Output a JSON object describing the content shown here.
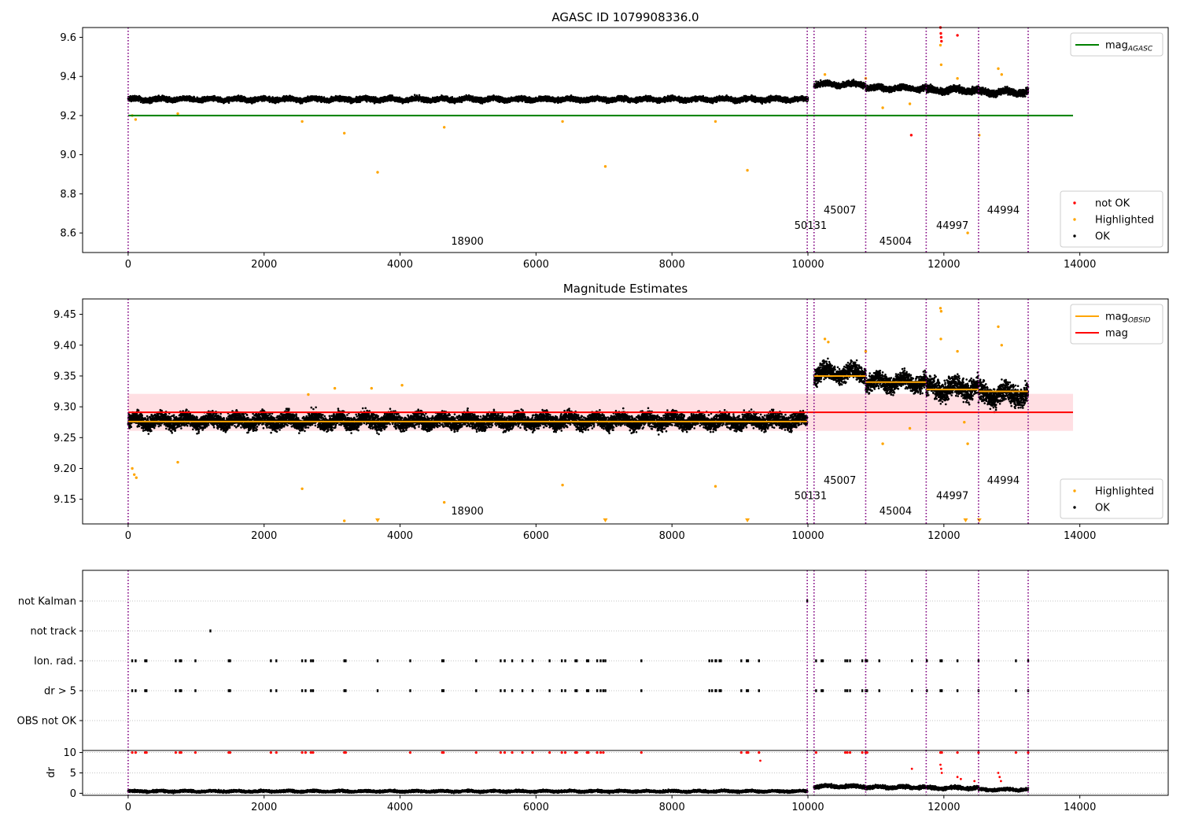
{
  "chart_data": [
    {
      "type": "scatter",
      "title": "AGASC ID 1079908336.0",
      "xlim": [
        -670,
        15300
      ],
      "ylim": [
        8.5,
        9.65
      ],
      "xticks": [
        0,
        2000,
        4000,
        6000,
        8000,
        10000,
        12000,
        14000
      ],
      "yticks": [
        8.6,
        8.8,
        9.0,
        9.2,
        9.4,
        9.6
      ],
      "grid": false,
      "legends": [
        {
          "loc": "upper-right",
          "entries": [
            {
              "label": "mag",
              "sub": "AGASC",
              "kind": "line",
              "color": "#008000"
            }
          ]
        },
        {
          "loc": "lower-right",
          "entries": [
            {
              "label": "not OK",
              "kind": "dot",
              "color": "#ff0000"
            },
            {
              "label": "Highlighted",
              "kind": "dot",
              "color": "#ffa500"
            },
            {
              "label": "OK",
              "kind": "dot",
              "color": "#000000"
            }
          ]
        }
      ],
      "reference_line": {
        "y": 9.2,
        "x0": 0,
        "x1": 13900,
        "color": "#008000",
        "label": "mag_AGASC"
      },
      "ok_band_segments": [
        {
          "x0": 0,
          "x1": 10000,
          "center": 9.283,
          "half": 0.018
        },
        {
          "x0": 10090,
          "x1": 10850,
          "center": 9.36,
          "half": 0.02
        },
        {
          "x0": 10850,
          "x1": 11740,
          "center": 9.34,
          "half": 0.02
        },
        {
          "x0": 11740,
          "x1": 12510,
          "center": 9.33,
          "half": 0.025
        },
        {
          "x0": 12510,
          "x1": 13240,
          "center": 9.32,
          "half": 0.025
        }
      ],
      "highlighted_points": [
        [
          60,
          9.2
        ],
        [
          110,
          9.18
        ],
        [
          730,
          9.21
        ],
        [
          2560,
          9.17
        ],
        [
          3180,
          9.11
        ],
        [
          3670,
          8.91
        ],
        [
          4650,
          9.14
        ],
        [
          6390,
          9.17
        ],
        [
          7020,
          8.94
        ],
        [
          8640,
          9.17
        ],
        [
          9110,
          8.92
        ],
        [
          10250,
          9.41
        ],
        [
          10850,
          9.39
        ],
        [
          11100,
          9.24
        ],
        [
          11500,
          9.26
        ],
        [
          11950,
          9.56
        ],
        [
          11960,
          9.46
        ],
        [
          12200,
          9.39
        ],
        [
          12350,
          8.6
        ],
        [
          12520,
          9.1
        ],
        [
          12800,
          9.44
        ],
        [
          12850,
          9.41
        ]
      ],
      "not_ok_points": [
        [
          11520,
          9.1
        ],
        [
          11950,
          9.65
        ],
        [
          11955,
          9.62
        ],
        [
          11960,
          9.6
        ],
        [
          11965,
          9.58
        ],
        [
          12200,
          9.61
        ]
      ],
      "obsid_boundaries": [
        0,
        9990,
        10090,
        10850,
        11740,
        12510,
        13240
      ],
      "obsid_labels": [
        {
          "text": "18900",
          "x": 4990,
          "y": 8.54
        },
        {
          "text": "50131",
          "x": 10040,
          "y": 8.62
        },
        {
          "text": "45007",
          "x": 10470,
          "y": 8.7
        },
        {
          "text": "45004",
          "x": 11290,
          "y": 8.54
        },
        {
          "text": "44997",
          "x": 12125,
          "y": 8.62
        },
        {
          "text": "44994",
          "x": 12875,
          "y": 8.7
        }
      ]
    },
    {
      "type": "scatter",
      "title": "Magnitude Estimates",
      "xlim": [
        -670,
        15300
      ],
      "ylim": [
        9.11,
        9.475
      ],
      "xticks": [
        0,
        2000,
        4000,
        6000,
        8000,
        10000,
        12000,
        14000
      ],
      "yticks": [
        9.15,
        9.2,
        9.25,
        9.3,
        9.35,
        9.4,
        9.45
      ],
      "grid": false,
      "legends": [
        {
          "loc": "upper-right",
          "entries": [
            {
              "label": "mag",
              "sub": "OBSID",
              "kind": "line",
              "color": "#ffa500"
            },
            {
              "label": "mag",
              "kind": "line",
              "color": "#ff0000"
            }
          ]
        },
        {
          "loc": "lower-right",
          "entries": [
            {
              "label": "Highlighted",
              "kind": "dot",
              "color": "#ffa500"
            },
            {
              "label": "OK",
              "kind": "dot",
              "color": "#000000"
            }
          ]
        }
      ],
      "mag_line": {
        "y": 9.291,
        "x0": 0,
        "x1": 13900,
        "color": "#ff0000"
      },
      "mag_band": {
        "y0": 9.261,
        "y1": 9.321,
        "x0": 0,
        "x1": 13900,
        "color": "#ffc0c8"
      },
      "mag_obsid_segments": [
        {
          "x0": 0,
          "x1": 9990,
          "y": 9.276
        },
        {
          "x0": 10090,
          "x1": 10850,
          "y": 9.35
        },
        {
          "x0": 10850,
          "x1": 11740,
          "y": 9.34
        },
        {
          "x0": 11740,
          "x1": 12510,
          "y": 9.328
        },
        {
          "x0": 12510,
          "x1": 13240,
          "y": 9.325
        }
      ],
      "ok_band_segments": [
        {
          "x0": 0,
          "x1": 9990,
          "center": 9.277,
          "half": 0.018
        },
        {
          "x0": 10090,
          "x1": 10850,
          "center": 9.355,
          "half": 0.02
        },
        {
          "x0": 10850,
          "x1": 11740,
          "center": 9.34,
          "half": 0.02
        },
        {
          "x0": 11740,
          "x1": 12510,
          "center": 9.33,
          "half": 0.025
        },
        {
          "x0": 12510,
          "x1": 13240,
          "center": 9.32,
          "half": 0.025
        }
      ],
      "highlighted_points": [
        [
          60,
          9.2
        ],
        [
          90,
          9.19
        ],
        [
          120,
          9.185
        ],
        [
          730,
          9.21
        ],
        [
          2560,
          9.167
        ],
        [
          3180,
          9.115
        ],
        [
          4650,
          9.145
        ],
        [
          6390,
          9.173
        ],
        [
          8640,
          9.171
        ],
        [
          2650,
          9.32
        ],
        [
          3040,
          9.33
        ],
        [
          3580,
          9.33
        ],
        [
          4030,
          9.335
        ],
        [
          10250,
          9.41
        ],
        [
          10300,
          9.405
        ],
        [
          10850,
          9.39
        ],
        [
          11100,
          9.24
        ],
        [
          11500,
          9.265
        ],
        [
          11950,
          9.46
        ],
        [
          11960,
          9.455
        ],
        [
          11955,
          9.41
        ],
        [
          12200,
          9.39
        ],
        [
          12350,
          9.24
        ],
        [
          12800,
          9.43
        ],
        [
          12850,
          9.4
        ],
        [
          12300,
          9.275
        ]
      ],
      "below_range_markers": [
        3670,
        7020,
        9110,
        12320,
        12520
      ],
      "obsid_boundaries": [
        0,
        9990,
        10090,
        10850,
        11740,
        12510,
        13240
      ],
      "obsid_labels": [
        {
          "text": "18900",
          "x": 4990,
          "y": 9.125
        },
        {
          "text": "50131",
          "x": 10040,
          "y": 9.15
        },
        {
          "text": "45007",
          "x": 10470,
          "y": 9.175
        },
        {
          "text": "45004",
          "x": 11290,
          "y": 9.125
        },
        {
          "text": "44997",
          "x": 12125,
          "y": 9.15
        },
        {
          "text": "44994",
          "x": 12875,
          "y": 9.175
        }
      ]
    },
    {
      "type": "scatter",
      "title": "",
      "xlim": [
        -670,
        15300
      ],
      "categories": [
        "not Kalman",
        "not track",
        "Ion. rad.",
        "dr > 5",
        "OBS not OK"
      ],
      "grid": "horizontal-dotted",
      "flag_points": {
        "not Kalman": [
          9990
        ],
        "not track": [
          1210
        ],
        "Ion. rad.": [
          60,
          110,
          250,
          270,
          700,
          760,
          780,
          990,
          1480,
          1500,
          2100,
          2180,
          2560,
          2610,
          2690,
          2720,
          3180,
          3200,
          3670,
          4150,
          4620,
          4640,
          5120,
          5480,
          5540,
          5650,
          5800,
          5950,
          6200,
          6380,
          6430,
          6580,
          6600,
          6750,
          6770,
          6900,
          6950,
          6990,
          7020,
          7550,
          8550,
          8590,
          8640,
          8650,
          8700,
          8720,
          9020,
          9100,
          9120,
          9280,
          10120,
          10200,
          10220,
          10550,
          10580,
          10620,
          10800,
          10850,
          10870,
          11050,
          11530,
          11750,
          11950,
          11970,
          12200,
          12510,
          13060,
          13240
        ],
        "dr > 5": [
          60,
          110,
          250,
          270,
          700,
          760,
          780,
          990,
          1480,
          1500,
          2100,
          2180,
          2560,
          2610,
          2690,
          2720,
          3180,
          3200,
          3670,
          4150,
          4620,
          4640,
          5120,
          5480,
          5540,
          5650,
          5800,
          5950,
          6200,
          6380,
          6430,
          6580,
          6600,
          6750,
          6770,
          6900,
          6950,
          6990,
          7020,
          7550,
          8550,
          8590,
          8640,
          8650,
          8700,
          8720,
          9020,
          9100,
          9120,
          9280,
          10120,
          10200,
          10220,
          10550,
          10580,
          10620,
          10800,
          10850,
          10870,
          11050,
          11530,
          11750,
          11950,
          11970,
          12200,
          12510,
          13060,
          13240
        ],
        "OBS not OK": []
      },
      "obsid_boundaries": [
        0,
        9990,
        10090,
        10850,
        11740,
        12510,
        13240
      ]
    },
    {
      "type": "scatter",
      "title": "",
      "xlim": [
        -670,
        15300
      ],
      "ylim": [
        -0.5,
        10.5
      ],
      "xticks": [
        0,
        2000,
        4000,
        6000,
        8000,
        10000,
        12000,
        14000
      ],
      "yticks": [
        0,
        5,
        10
      ],
      "ylabel": "dr",
      "grid": "horizontal-dotted",
      "ok_band_segments": [
        {
          "x0": 0,
          "x1": 9990,
          "center": 0.5,
          "half": 0.4
        },
        {
          "x0": 10090,
          "x1": 10850,
          "center": 1.7,
          "half": 0.6
        },
        {
          "x0": 10850,
          "x1": 11740,
          "center": 1.5,
          "half": 0.6
        },
        {
          "x0": 11740,
          "x1": 12510,
          "center": 1.3,
          "half": 0.6
        },
        {
          "x0": 12510,
          "x1": 13240,
          "center": 0.9,
          "half": 0.5
        }
      ],
      "capped_points_x": [
        60,
        110,
        250,
        270,
        700,
        760,
        780,
        990,
        1480,
        1500,
        2100,
        2180,
        2560,
        2610,
        2690,
        2720,
        3180,
        3200,
        4150,
        4620,
        4640,
        5120,
        5480,
        5540,
        5650,
        5800,
        5950,
        6200,
        6380,
        6430,
        6580,
        6600,
        6750,
        6770,
        6900,
        6950,
        6990,
        7550,
        9020,
        9100,
        9120,
        9280,
        10120,
        10550,
        10580,
        10620,
        10800,
        10850,
        10870,
        11950,
        11970,
        12200,
        12510,
        13060,
        13240
      ],
      "not_ok_points": [
        [
          9300,
          8
        ],
        [
          11530,
          6
        ],
        [
          11950,
          7
        ],
        [
          11960,
          6
        ],
        [
          11970,
          5
        ],
        [
          12200,
          4
        ],
        [
          12250,
          3.5
        ],
        [
          12450,
          3
        ],
        [
          12800,
          5
        ],
        [
          12820,
          4
        ],
        [
          12840,
          3
        ]
      ],
      "obsid_boundaries": [
        0,
        9990,
        10090,
        10850,
        11740,
        12510,
        13240
      ]
    }
  ]
}
